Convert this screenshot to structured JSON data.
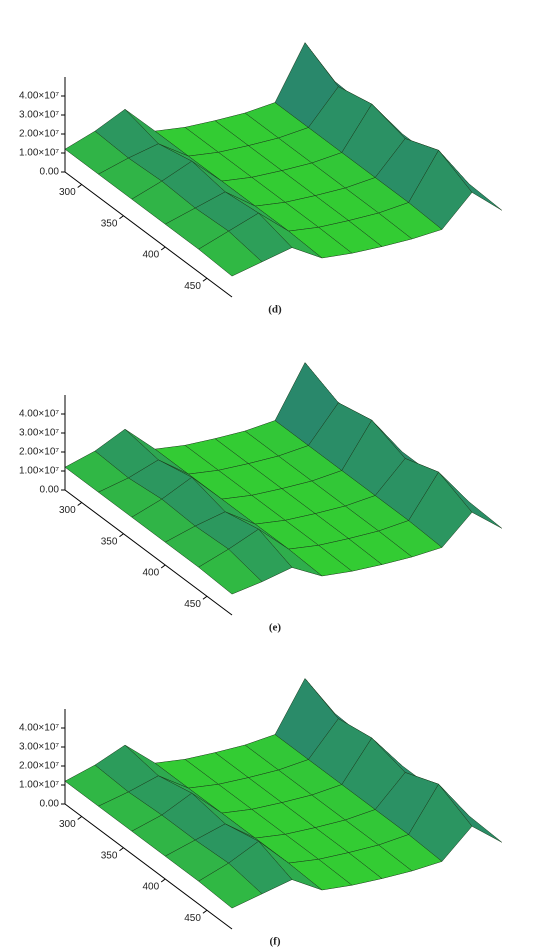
{
  "chart_data": [
    {
      "type": "surface",
      "panel_label": "(d)",
      "colormap": [
        "#33cc33",
        "#1f3fa8"
      ],
      "y": [
        280,
        320,
        360,
        400,
        440,
        480
      ],
      "z": [
        [
          12000000,
          18000000,
          26000000,
          11000000,
          9500000,
          9500000,
          10000000,
          12000000,
          40000000,
          16000000
        ],
        [
          12000000,
          17000000,
          21000000,
          11000000,
          9500000,
          9500000,
          10000000,
          12000000,
          30000000,
          15000000
        ],
        [
          12000000,
          18000000,
          25000000,
          11000000,
          9500000,
          9500000,
          10000000,
          12000000,
          34000000,
          15000000
        ],
        [
          12000000,
          17000000,
          22000000,
          11000000,
          9500000,
          9500000,
          10000000,
          12000000,
          29000000,
          15000000
        ],
        [
          12000000,
          18000000,
          24000000,
          11000000,
          9500000,
          9500000,
          10000000,
          12000000,
          36000000,
          15000000
        ],
        [
          11000000,
          15000000,
          19000000,
          10000000,
          9000000,
          9000000,
          9500000,
          11000000,
          27000000,
          14000000
        ]
      ],
      "ylim": [
        280,
        480
      ],
      "yticks": [
        300,
        350,
        400,
        450
      ],
      "zlim": [
        0,
        50000000
      ],
      "zticks": [
        {
          "value": 0,
          "label": "0.00"
        },
        {
          "value": 10000000,
          "label": "1.00×10⁷"
        },
        {
          "value": 20000000,
          "label": "2.00×10⁷"
        },
        {
          "value": 30000000,
          "label": "3.00×10⁷"
        },
        {
          "value": 40000000,
          "label": "4.00×10⁷"
        }
      ]
    },
    {
      "type": "surface",
      "panel_label": "(e)",
      "colormap": [
        "#33cc33",
        "#1f3fa8"
      ],
      "y": [
        280,
        320,
        360,
        400,
        440,
        480
      ],
      "z": [
        [
          12000000,
          17000000,
          25000000,
          11000000,
          9500000,
          9500000,
          10000000,
          12000000,
          39000000,
          16000000
        ],
        [
          12000000,
          16000000,
          22000000,
          11000000,
          9500000,
          9500000,
          10000000,
          12000000,
          31000000,
          15000000
        ],
        [
          12000000,
          18000000,
          26000000,
          11000000,
          9500000,
          9500000,
          10000000,
          12000000,
          35000000,
          15000000
        ],
        [
          12000000,
          17000000,
          21000000,
          11000000,
          9500000,
          9500000,
          10000000,
          12000000,
          28000000,
          15000000
        ],
        [
          12000000,
          18000000,
          25000000,
          11000000,
          9500000,
          9500000,
          10000000,
          12000000,
          34000000,
          15000000
        ],
        [
          11000000,
          14000000,
          18000000,
          10000000,
          9000000,
          9000000,
          9500000,
          11000000,
          26000000,
          14000000
        ]
      ],
      "ylim": [
        280,
        480
      ],
      "yticks": [
        300,
        350,
        400,
        450
      ],
      "zlim": [
        0,
        50000000
      ],
      "zticks": [
        {
          "value": 0,
          "label": "0.00"
        },
        {
          "value": 10000000,
          "label": "1.00×10⁷"
        },
        {
          "value": 20000000,
          "label": "2.00×10⁷"
        },
        {
          "value": 30000000,
          "label": "3.00×10⁷"
        },
        {
          "value": 40000000,
          "label": "4.00×10⁷"
        }
      ]
    },
    {
      "type": "surface",
      "panel_label": "(f)",
      "colormap": [
        "#33cc33",
        "#1f3fa8"
      ],
      "y": [
        280,
        320,
        360,
        400,
        440,
        480
      ],
      "z": [
        [
          12000000,
          17000000,
          24000000,
          11000000,
          9500000,
          9500000,
          10000000,
          12000000,
          38000000,
          16000000
        ],
        [
          12000000,
          16000000,
          21000000,
          11000000,
          9500000,
          9500000,
          10000000,
          12000000,
          30000000,
          15000000
        ],
        [
          12000000,
          17000000,
          25000000,
          11000000,
          9500000,
          9500000,
          10000000,
          12000000,
          33000000,
          15000000
        ],
        [
          12000000,
          17000000,
          22000000,
          11000000,
          9500000,
          9500000,
          10000000,
          12000000,
          28000000,
          15000000
        ],
        [
          12000000,
          18000000,
          26000000,
          11000000,
          9500000,
          9500000,
          10000000,
          12000000,
          35000000,
          15000000
        ],
        [
          11000000,
          15000000,
          19000000,
          10000000,
          9000000,
          9000000,
          9500000,
          11000000,
          26000000,
          14000000
        ]
      ],
      "ylim": [
        280,
        480
      ],
      "yticks": [
        300,
        350,
        400,
        450
      ],
      "zlim": [
        0,
        50000000
      ],
      "zticks": [
        {
          "value": 0,
          "label": "0.00"
        },
        {
          "value": 10000000,
          "label": "1.00×10⁷"
        },
        {
          "value": 20000000,
          "label": "2.00×10⁷"
        },
        {
          "value": 30000000,
          "label": "3.00×10⁷"
        },
        {
          "value": 40000000,
          "label": "4.00×10⁷"
        }
      ]
    }
  ]
}
